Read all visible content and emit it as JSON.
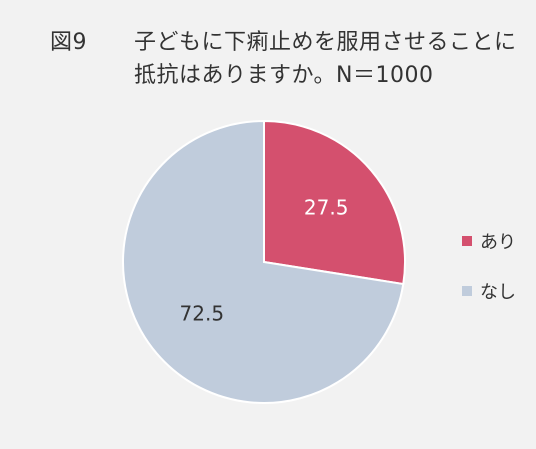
{
  "title": {
    "figure_label": "図9",
    "line1": "子どもに下痢止めを服用させることに",
    "line2": "抵抗はありますか。N＝1000"
  },
  "chart_data": {
    "type": "pie",
    "categories": [
      "あり",
      "なし"
    ],
    "values": [
      27.5,
      72.5
    ],
    "colors": [
      "#d4506e",
      "#c0ccdc"
    ],
    "legend_placement": "right",
    "data_labels": [
      "27.5",
      "72.5"
    ]
  }
}
